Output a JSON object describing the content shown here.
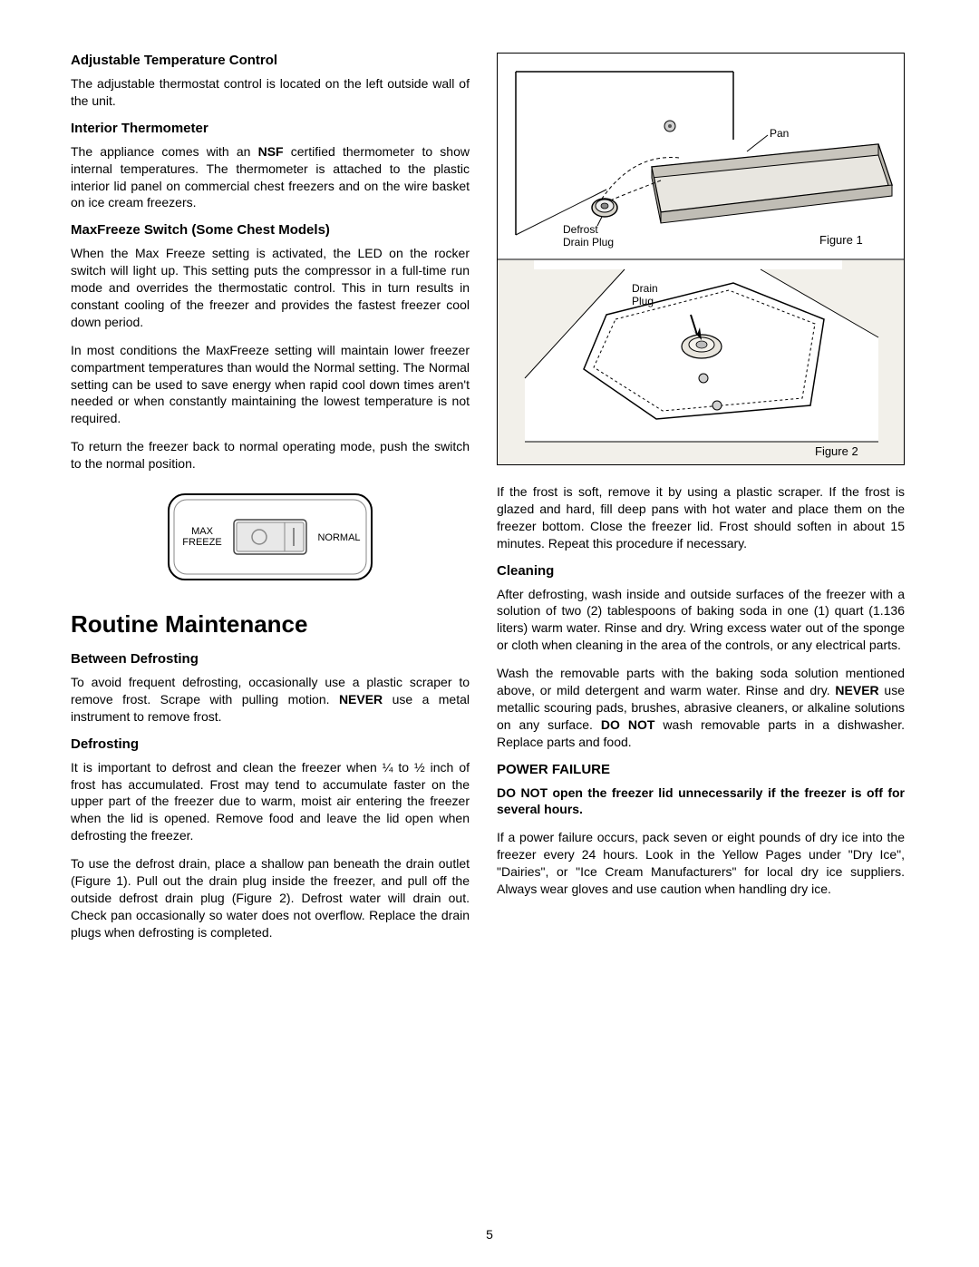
{
  "page_number": "5",
  "left_column": {
    "sections": [
      {
        "heading": "Adjustable Temperature Control",
        "paragraphs": [
          {
            "runs": [
              {
                "text": "The adjustable thermostat control is located on the left outside wall of the unit."
              }
            ]
          }
        ]
      },
      {
        "heading": "Interior Thermometer",
        "paragraphs": [
          {
            "runs": [
              {
                "text": "The appliance comes with an "
              },
              {
                "text": "NSF",
                "bold": true
              },
              {
                "text": " certified thermometer to show internal temperatures. The thermometer is attached to the plastic interior lid panel on commercial chest freezers and on the wire basket on ice cream freezers."
              }
            ]
          }
        ]
      },
      {
        "heading": "MaxFreeze Switch (Some Chest Models)",
        "paragraphs": [
          {
            "runs": [
              {
                "text": "When the Max Freeze setting is activated, the LED on the rocker switch will light up. This setting puts the compressor in a full-time run mode and overrides the thermostatic control. This in turn results in constant cooling of the freezer and provides the fastest freezer cool down period."
              }
            ]
          },
          {
            "runs": [
              {
                "text": "In most conditions the MaxFreeze setting will maintain lower freezer compartment temperatures than would the Normal setting. The Normal setting can be used to save energy when rapid cool down times aren't needed or when constantly maintaining the lowest temperature is not required."
              }
            ]
          },
          {
            "runs": [
              {
                "text": "To return the freezer back to normal operating mode, push the switch to the normal position."
              }
            ]
          }
        ]
      }
    ],
    "switch_diagram": {
      "left_label_line1": "MAX",
      "left_label_line2": "FREEZE",
      "right_label": "NORMAL"
    },
    "main_heading": "Routine Maintenance",
    "sections2": [
      {
        "heading": "Between Defrosting",
        "paragraphs": [
          {
            "runs": [
              {
                "text": "To avoid frequent defrosting, occasionally use a plastic scraper to remove frost. Scrape with pulling motion. "
              },
              {
                "text": "NEVER",
                "bold": true
              },
              {
                "text": " use a metal instrument to remove frost."
              }
            ]
          }
        ]
      },
      {
        "heading": "Defrosting",
        "paragraphs": [
          {
            "runs": [
              {
                "text": "It is important to defrost and clean the freezer when ¼ to ½ inch of frost has accumulated. Frost may tend to accumulate faster on the upper part of the freezer due to warm, moist air entering the freezer when the lid is opened. Remove food and leave the lid open when defrosting the freezer."
              }
            ]
          },
          {
            "runs": [
              {
                "text": "To use the defrost drain, place a shallow pan beneath the drain outlet (Figure 1). Pull out the drain plug inside the freezer, and pull off the outside defrost drain plug (Figure 2). Defrost water will drain out. Check pan occasionally so water does not overflow. Replace the drain plugs when defrosting is completed."
              }
            ]
          }
        ]
      }
    ]
  },
  "right_column": {
    "figure1": {
      "label_pan": "Pan",
      "label_defrost": "Defrost",
      "label_drain_plug": "Drain Plug",
      "caption": "Figure 1"
    },
    "figure2": {
      "label_drain": "Drain",
      "label_plug": "Plug",
      "caption": "Figure 2"
    },
    "intro_paragraph": {
      "runs": [
        {
          "text": "If the frost is soft, remove it by using a plastic scraper. If the frost is glazed and hard, fill deep pans with hot water and place them on the freezer bottom. Close the freezer lid. Frost should soften in about 15 minutes. Repeat this procedure if necessary."
        }
      ]
    },
    "sections": [
      {
        "heading": "Cleaning",
        "paragraphs": [
          {
            "runs": [
              {
                "text": "After defrosting, wash inside and outside surfaces of the freezer with a solution of two (2) tablespoons of baking soda in one (1) quart (1.136 liters) warm water. Rinse and dry. Wring excess water out of the sponge or cloth when cleaning in the area of the controls, or any electrical parts."
              }
            ]
          },
          {
            "runs": [
              {
                "text": "Wash the removable parts with the baking soda solution mentioned above, or mild detergent and warm water. Rinse and dry. "
              },
              {
                "text": "NEVER",
                "bold": true
              },
              {
                "text": " use metallic scouring pads, brushes, abrasive cleaners, or alkaline solutions on any surface. "
              },
              {
                "text": "DO NOT",
                "bold": true
              },
              {
                "text": " wash removable parts in a dishwasher. Replace parts and food."
              }
            ]
          }
        ]
      },
      {
        "heading": "POWER FAILURE",
        "paragraphs": [
          {
            "runs": [
              {
                "text": "DO NOT open the freezer lid unnecessarily if the freezer is off for several hours.",
                "bold": true
              }
            ]
          },
          {
            "runs": [
              {
                "text": "If a power failure occurs, pack seven or eight pounds of dry ice into the freezer every 24 hours. Look in the Yellow Pages under \"Dry Ice\", \"Dairies\", or \"Ice Cream Manufacturers\" for local dry ice suppliers. Always wear gloves and use caution when handling dry ice."
              }
            ]
          }
        ]
      }
    ]
  }
}
